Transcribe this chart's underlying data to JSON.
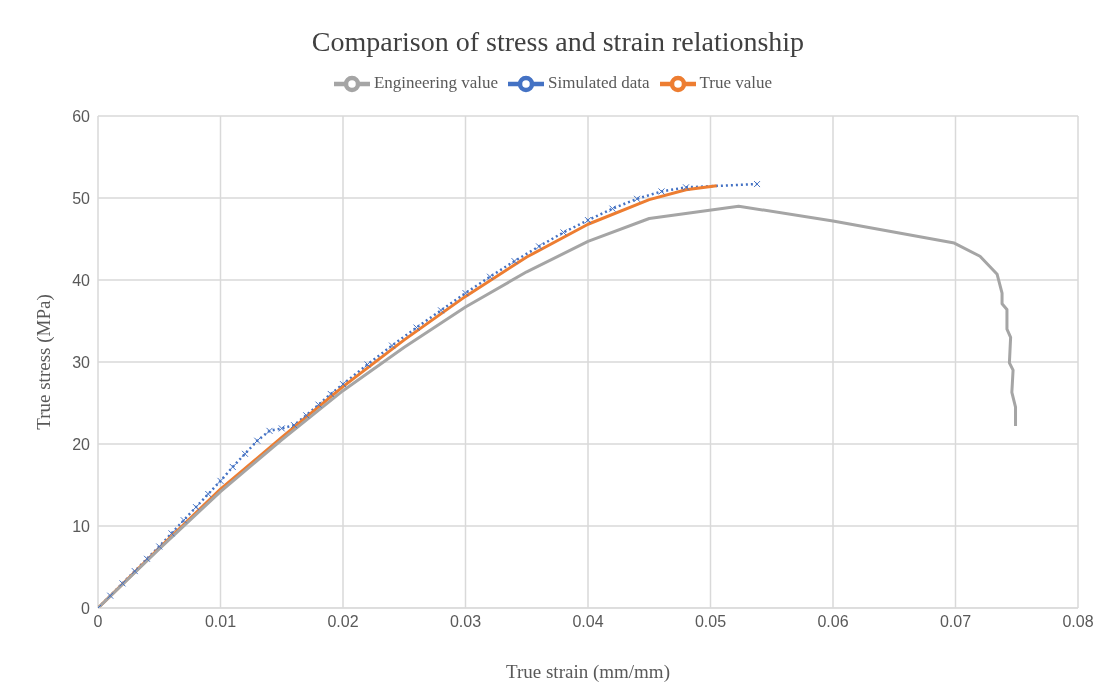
{
  "chart_data": {
    "type": "line",
    "title": "Comparison of stress and strain relationship",
    "xlabel": "True strain (mm/mm)",
    "ylabel": "True stress (MPa)",
    "xlim": [
      0,
      0.08
    ],
    "xticks": [
      0,
      0.01,
      0.02,
      0.03,
      0.04,
      0.05,
      0.06,
      0.07,
      0.08
    ],
    "ylim": [
      0,
      60
    ],
    "yticks": [
      0,
      10,
      20,
      30,
      40,
      50,
      60
    ],
    "grid": true,
    "legend": "top",
    "series": [
      {
        "name": "Simulated data",
        "color": "#4472c4",
        "marker": "cross",
        "line_style": "dotted",
        "x": [
          0,
          0.001,
          0.002,
          0.003,
          0.004,
          0.005,
          0.006,
          0.007,
          0.008,
          0.009,
          0.01,
          0.011,
          0.012,
          0.013,
          0.014,
          0.015,
          0.016,
          0.017,
          0.018,
          0.019,
          0.02,
          0.022,
          0.024,
          0.026,
          0.028,
          0.03,
          0.032,
          0.034,
          0.036,
          0.038,
          0.04,
          0.042,
          0.044,
          0.046,
          0.048,
          0.0538
        ],
        "values": [
          0,
          1.5,
          3.0,
          4.5,
          6.0,
          7.5,
          9.1,
          10.7,
          12.3,
          13.9,
          15.5,
          17.2,
          18.8,
          20.4,
          21.6,
          21.9,
          22.3,
          23.5,
          24.8,
          26.1,
          27.3,
          29.7,
          32.0,
          34.2,
          36.3,
          38.4,
          40.4,
          42.3,
          44.1,
          45.8,
          47.3,
          48.7,
          49.9,
          50.8,
          51.3,
          51.7
        ]
      },
      {
        "name": "True value",
        "color": "#ed7d31",
        "marker": "none",
        "line_style": "solid",
        "x": [
          0,
          0.005,
          0.01,
          0.015,
          0.02,
          0.025,
          0.03,
          0.035,
          0.04,
          0.045,
          0.048,
          0.0505
        ],
        "values": [
          0,
          7.3,
          14.5,
          20.8,
          27.0,
          32.7,
          38.0,
          42.8,
          46.8,
          49.8,
          51.0,
          51.5
        ]
      },
      {
        "name": "Engineering value",
        "color": "#a5a5a5",
        "marker": "none",
        "line_style": "solid",
        "x": [
          0,
          0.005,
          0.01,
          0.015,
          0.02,
          0.025,
          0.03,
          0.035,
          0.04,
          0.045,
          0.0523,
          0.06,
          0.0699,
          0.072,
          0.0734,
          0.0738,
          0.0738,
          0.0742,
          0.0742,
          0.0745,
          0.0744,
          0.0747,
          0.0746,
          0.0749,
          0.0749
        ],
        "values": [
          0,
          7.2,
          14.2,
          20.5,
          26.5,
          31.8,
          36.7,
          41.0,
          44.7,
          47.5,
          49.0,
          47.2,
          44.5,
          42.9,
          40.7,
          38.4,
          37.1,
          36.4,
          34.0,
          33.0,
          29.9,
          29.0,
          26.3,
          24.5,
          22.2
        ]
      }
    ]
  }
}
